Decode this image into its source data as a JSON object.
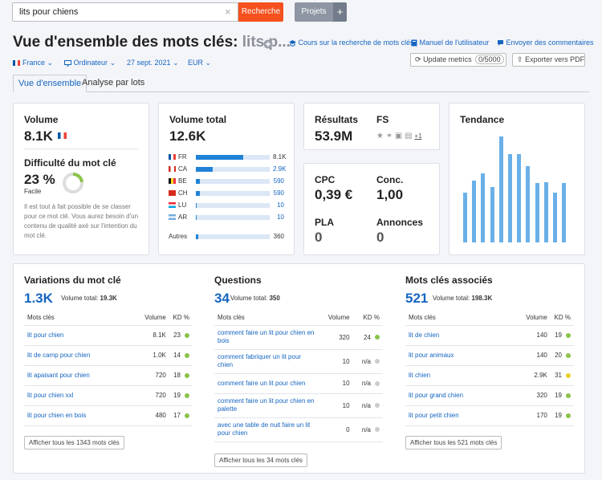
{
  "search": {
    "value": "lits pour chiens",
    "button": "Recherche",
    "projects": "Projets",
    "plus": "+",
    "clear": "×"
  },
  "header": {
    "title": "Vue d'ensemble des mots clés:",
    "keyword": "lits p...",
    "links": [
      "Cours sur la recherche de mots clés",
      "Manuel de l'utilisateur",
      "Envoyer des commentaires"
    ]
  },
  "filters": {
    "country": "France",
    "device": "Ordinateur",
    "date": "27 sept. 2021",
    "currency": "EUR"
  },
  "tools": {
    "update": "Update metrics",
    "update_count": "0/5000",
    "export": "Exporter vers PDF"
  },
  "tabs": [
    "Vue d'ensemble",
    "Analyse par lots"
  ],
  "volume": {
    "label": "Volume",
    "value": "8.1K"
  },
  "difficulty": {
    "label": "Difficulté du mot clé",
    "value": "23 %",
    "level": "Facile",
    "percent": 23,
    "text": "Il est tout à fait possible de se classer pour ce mot clé. Vous aurez besoin d'un contenu de qualité axé sur l'intention du mot clé."
  },
  "total_volume": {
    "label": "Volume total",
    "value": "12.6K",
    "rows": [
      {
        "code": "FR",
        "value": "8.1K",
        "ratio": 0.64
      },
      {
        "code": "CA",
        "value": "2.9K",
        "ratio": 0.23
      },
      {
        "code": "BE",
        "value": "590",
        "ratio": 0.05
      },
      {
        "code": "CH",
        "value": "590",
        "ratio": 0.05
      },
      {
        "code": "LU",
        "value": "10",
        "ratio": 0.01
      },
      {
        "code": "AR",
        "value": "10",
        "ratio": 0.01
      }
    ],
    "others_label": "Autres",
    "others_value": "360",
    "others_ratio": 0.03
  },
  "results": {
    "label": "Résultats",
    "value": "53.9M",
    "fs_label": "FS",
    "fs_more": "+1"
  },
  "cpc": {
    "cpc_label": "CPC",
    "cpc_value": "0,39 €",
    "conc_label": "Conc.",
    "conc_value": "1,00",
    "pla_label": "PLA",
    "pla_value": "0",
    "ads_label": "Annonces",
    "ads_value": "0"
  },
  "trend": {
    "label": "Tendance",
    "values": [
      0.47,
      0.58,
      0.65,
      0.52,
      1.0,
      0.83,
      0.83,
      0.72,
      0.56,
      0.57,
      0.47,
      0.56
    ]
  },
  "variations": {
    "title": "Variations du mot clé",
    "count": "1.3K",
    "vol_label": "Volume total:",
    "vol_value": "19.3K",
    "headers": [
      "Mots clés",
      "Volume",
      "KD %"
    ],
    "rows": [
      {
        "kw": "lit pour chien",
        "vol": "8.1K",
        "kd": "23",
        "color": "#8bc34a"
      },
      {
        "kw": "lit de camp pour chien",
        "vol": "1.0K",
        "kd": "14",
        "color": "#8bc34a"
      },
      {
        "kw": "lit apaisant pour chien",
        "vol": "720",
        "kd": "18",
        "color": "#8bc34a"
      },
      {
        "kw": "lit pour chien xxl",
        "vol": "720",
        "kd": "19",
        "color": "#8bc34a"
      },
      {
        "kw": "lit pour chien en bois",
        "vol": "480",
        "kd": "17",
        "color": "#8bc34a"
      }
    ],
    "show_all": "Afficher tous les 1343 mots clés"
  },
  "questions": {
    "title": "Questions",
    "count": "34",
    "vol_label": "Volume total:",
    "vol_value": "350",
    "headers": [
      "Mots clés",
      "Volume",
      "KD %"
    ],
    "rows": [
      {
        "kw": "comment faire un lit pour chien en bois",
        "vol": "320",
        "kd": "24",
        "color": "#8bc34a"
      },
      {
        "kw": "comment fabriquer un lit pour chien",
        "vol": "10",
        "kd": "n/a",
        "color": "#cccccc"
      },
      {
        "kw": "comment faire un lit pour chien",
        "vol": "10",
        "kd": "n/a",
        "color": "#cccccc"
      },
      {
        "kw": "comment faire un lit pour chien en palette",
        "vol": "10",
        "kd": "n/a",
        "color": "#cccccc"
      },
      {
        "kw": "avec une table de nuit faire un lit pour chien",
        "vol": "0",
        "kd": "n/a",
        "color": "#cccccc"
      }
    ],
    "show_all": "Afficher tous les 34 mots clés"
  },
  "related": {
    "title": "Mots clés associés",
    "count": "521",
    "vol_label": "Volume total:",
    "vol_value": "198.3K",
    "headers": [
      "Mots clés",
      "Volume",
      "KD %"
    ],
    "rows": [
      {
        "kw": "lit de chien",
        "vol": "140",
        "kd": "19",
        "color": "#8bc34a"
      },
      {
        "kw": "lit pour animaux",
        "vol": "140",
        "kd": "20",
        "color": "#8bc34a"
      },
      {
        "kw": "lit chien",
        "vol": "2.9K",
        "kd": "31",
        "color": "#e7d22a"
      },
      {
        "kw": "lit pour grand chien",
        "vol": "320",
        "kd": "19",
        "color": "#8bc34a"
      },
      {
        "kw": "lit pour petit chien",
        "vol": "170",
        "kd": "19",
        "color": "#8bc34a"
      }
    ],
    "show_all": "Afficher tous les 521 mots clés"
  }
}
